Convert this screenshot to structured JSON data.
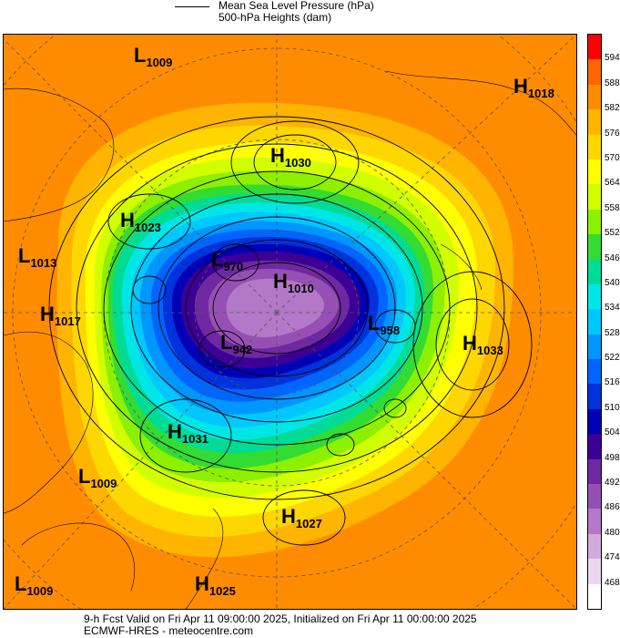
{
  "legend": {
    "mslp_label": "Mean Sea Level Pressure (hPa)",
    "heights_label": "500-hPa Heights (dam)"
  },
  "colorbar": {
    "labels": [
      "594",
      "588",
      "582",
      "576",
      "570",
      "564",
      "558",
      "552",
      "546",
      "540",
      "534",
      "528",
      "522",
      "516",
      "510",
      "504",
      "498",
      "492",
      "486",
      "480",
      "474",
      "468"
    ],
    "colors": [
      "#ff0000",
      "#ff6600",
      "#ff8c00",
      "#ffb400",
      "#ffd700",
      "#ffff00",
      "#d2ff00",
      "#8cf000",
      "#32dc32",
      "#00dc96",
      "#00e6e6",
      "#00c8ff",
      "#0096ff",
      "#0064ff",
      "#0032dc",
      "#0000b4",
      "#3c0096",
      "#6e28a0",
      "#9650b4",
      "#b478c8",
      "#d2aadc",
      "#ebd7f0",
      "#ffffff"
    ]
  },
  "centers": [
    {
      "type": "L",
      "value": "1009"
    },
    {
      "type": "H",
      "value": "1018"
    },
    {
      "type": "H",
      "value": "1030"
    },
    {
      "type": "H",
      "value": "1023"
    },
    {
      "type": "L",
      "value": "1013"
    },
    {
      "type": "L",
      "value": "970"
    },
    {
      "type": "H",
      "value": "1010"
    },
    {
      "type": "H",
      "value": "1017"
    },
    {
      "type": "L",
      "value": "958"
    },
    {
      "type": "H",
      "value": "1033"
    },
    {
      "type": "L",
      "value": "942"
    },
    {
      "type": "H",
      "value": "1031"
    },
    {
      "type": "L",
      "value": "1009"
    },
    {
      "type": "H",
      "value": "1027"
    },
    {
      "type": "L",
      "value": "1009"
    },
    {
      "type": "H",
      "value": "1025"
    }
  ],
  "footer": {
    "line1": "9-h Fcst Valid on Fri Apr 11 09:00:00 2025, Initialized on Fri Apr 11 00:00:00 2025",
    "line2": "ECMWF-HRES - meteocentre.com"
  }
}
